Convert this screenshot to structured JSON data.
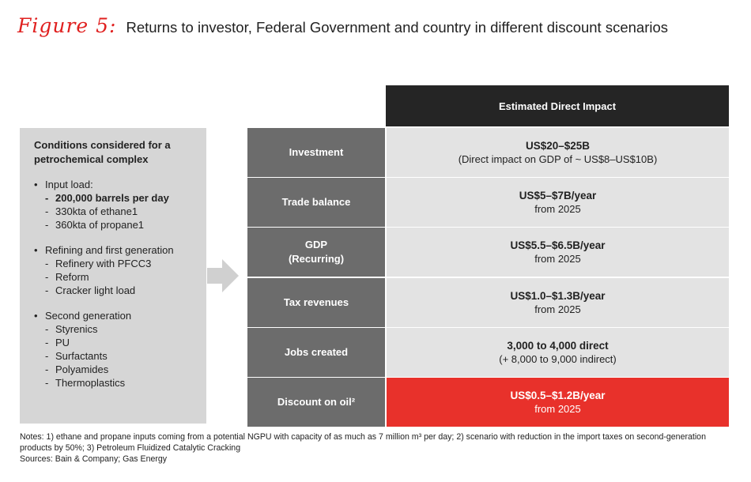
{
  "title": {
    "label": "Figure 5:",
    "text": "Returns to investor, Federal Government and country in different discount scenarios"
  },
  "left_panel": {
    "heading": "Conditions considered for a petrochemical complex",
    "groups": [
      {
        "title": "Input load:",
        "items": [
          {
            "text": "200,000 barrels per day",
            "bold": true
          },
          {
            "text": "330kta of ethane1",
            "bold": false
          },
          {
            "text": "360kta of propane1",
            "bold": false
          }
        ]
      },
      {
        "title": "Refining and first generation",
        "items": [
          {
            "text": "Refinery with PFCC3",
            "bold": false
          },
          {
            "text": "Reform",
            "bold": false
          },
          {
            "text": "Cracker light load",
            "bold": false
          }
        ]
      },
      {
        "title": "Second generation",
        "items": [
          {
            "text": "Styrenics",
            "bold": false
          },
          {
            "text": "PU",
            "bold": false
          },
          {
            "text": "Surfactants",
            "bold": false
          },
          {
            "text": "Polyamides",
            "bold": false
          },
          {
            "text": "Thermoplastics",
            "bold": false
          }
        ]
      }
    ]
  },
  "arrow_icon": "arrow-right-icon",
  "table": {
    "header": "Estimated Direct Impact",
    "rows": [
      {
        "label": [
          "Investment"
        ],
        "main": "US$20–$25B",
        "sub": "(Direct impact on GDP of ~ US$8–US$10B)",
        "highlight": false
      },
      {
        "label": [
          "Trade balance"
        ],
        "main": "US$5–$7B/year",
        "sub": "from 2025",
        "highlight": false
      },
      {
        "label": [
          "GDP",
          "(Recurring)"
        ],
        "main": "US$5.5–$6.5B/year",
        "sub": "from 2025",
        "highlight": false
      },
      {
        "label": [
          "Tax revenues"
        ],
        "main": "US$1.0–$1.3B/year",
        "sub": "from 2025",
        "highlight": false
      },
      {
        "label": [
          "Jobs created"
        ],
        "main": "3,000 to 4,000 direct",
        "sub": "(+ 8,000 to 9,000 indirect)",
        "highlight": false
      },
      {
        "label": [
          "Discount on oil²"
        ],
        "main": "US$0.5–$1.2B/year",
        "sub": "from 2025",
        "highlight": true
      }
    ]
  },
  "notes": {
    "line1": "Notes: 1) ethane and propane inputs coming from a potential NGPU with capacity of as much as 7 million m³ per day; 2) scenario with reduction in the import taxes on second-generation products by 50%; 3) Petroleum Fluidized Catalytic Cracking",
    "line2": "Sources: Bain & Company; Gas Energy"
  },
  "colors": {
    "accent_red": "#e8312b",
    "title_red": "#e0201f",
    "header_dark": "#252525",
    "label_gray": "#6c6c6c",
    "value_gray": "#e3e3e3",
    "panel_gray": "#d6d6d6"
  }
}
